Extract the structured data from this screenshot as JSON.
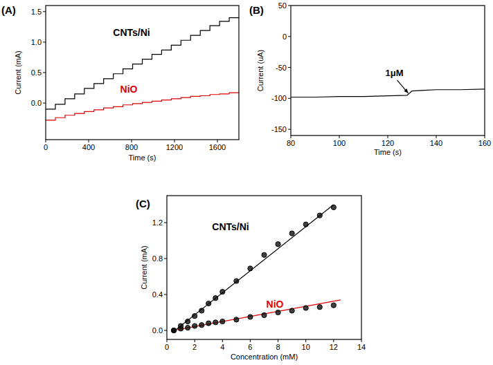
{
  "chart_data": [
    {
      "type": "line",
      "title": "(A)",
      "x_label": "Time (s)",
      "y_label": "Current (mA)",
      "xlim": [
        0,
        1800
      ],
      "ylim": [
        -0.6,
        1.6
      ],
      "xticks": [
        0,
        400,
        800,
        1200,
        1600
      ],
      "yticks": [
        {
          "value": 0,
          "label": "0.0"
        },
        0.5,
        {
          "value": 1,
          "label": "1.0"
        },
        1.5
      ],
      "series": [
        {
          "name": "CNTs/Ni",
          "color": "#000000",
          "x": [
            0,
            90,
            90,
            180,
            180,
            270,
            270,
            360,
            360,
            450,
            450,
            540,
            540,
            630,
            630,
            720,
            720,
            810,
            810,
            900,
            900,
            990,
            990,
            1080,
            1080,
            1170,
            1170,
            1260,
            1260,
            1350,
            1350,
            1440,
            1440,
            1530,
            1530,
            1620,
            1620,
            1710,
            1710,
            1800
          ],
          "values": [
            -0.1,
            -0.1,
            -0.02,
            -0.02,
            0.07,
            0.07,
            0.15,
            0.15,
            0.24,
            0.24,
            0.32,
            0.32,
            0.4,
            0.4,
            0.48,
            0.48,
            0.56,
            0.56,
            0.64,
            0.64,
            0.72,
            0.72,
            0.8,
            0.8,
            0.87,
            0.87,
            0.95,
            0.95,
            1.03,
            1.03,
            1.11,
            1.11,
            1.19,
            1.19,
            1.27,
            1.27,
            1.34,
            1.34,
            1.4,
            1.4
          ]
        },
        {
          "name": "NiO",
          "color": "#e00000",
          "x": [
            0,
            90,
            90,
            180,
            180,
            270,
            270,
            360,
            360,
            450,
            450,
            540,
            540,
            630,
            630,
            720,
            720,
            810,
            810,
            900,
            900,
            990,
            990,
            1080,
            1080,
            1170,
            1170,
            1260,
            1260,
            1350,
            1350,
            1440,
            1440,
            1530,
            1530,
            1620,
            1620,
            1710,
            1710,
            1800
          ],
          "values": [
            -0.28,
            -0.28,
            -0.24,
            -0.24,
            -0.2,
            -0.2,
            -0.17,
            -0.17,
            -0.14,
            -0.14,
            -0.11,
            -0.11,
            -0.08,
            -0.08,
            -0.06,
            -0.06,
            -0.03,
            -0.03,
            -0.01,
            -0.01,
            0.01,
            0.01,
            0.03,
            0.03,
            0.05,
            0.05,
            0.07,
            0.07,
            0.09,
            0.09,
            0.11,
            0.11,
            0.12,
            0.12,
            0.14,
            0.14,
            0.15,
            0.15,
            0.17,
            0.17
          ]
        }
      ]
    },
    {
      "type": "line",
      "title": "(B)",
      "x_label": "Time (s)",
      "y_label": "Current (uA)",
      "xlim": [
        80,
        160
      ],
      "ylim": [
        -160,
        50
      ],
      "xticks": [
        80,
        100,
        120,
        140,
        160
      ],
      "yticks": [
        -150,
        -100,
        -50,
        0,
        50
      ],
      "series": [
        {
          "color": "#000000",
          "x": [
            80,
            90,
            100,
            110,
            120,
            128,
            130,
            135,
            140,
            150,
            160
          ],
          "values": [
            -98,
            -98,
            -97,
            -97,
            -96,
            -95,
            -88,
            -87,
            -86,
            -86,
            -85
          ]
        }
      ],
      "annotations": [
        {
          "text": "1μM",
          "x": 129,
          "y": -95
        }
      ]
    },
    {
      "type": "scatter",
      "title": "(C)",
      "x_label": "Concentration (mM)",
      "y_label": "Current (mA)",
      "xlim": [
        0,
        14
      ],
      "ylim": [
        -0.1,
        1.5
      ],
      "xticks": [
        0,
        2,
        4,
        6,
        8,
        10,
        12,
        14
      ],
      "yticks": [
        {
          "value": 0,
          "label": "0.0"
        },
        0.4,
        0.8,
        1.2
      ],
      "series": [
        {
          "type": "scatter",
          "color": "#000000",
          "marker": "circle",
          "x": [
            0.5,
            1,
            1.5,
            2,
            2.5,
            3,
            3.5,
            4,
            5,
            6,
            7,
            8,
            9,
            10,
            11,
            12
          ],
          "values": [
            0.0,
            0.05,
            0.1,
            0.16,
            0.22,
            0.3,
            0.36,
            0.43,
            0.55,
            0.69,
            0.84,
            0.96,
            1.08,
            1.18,
            1.28,
            1.37
          ]
        },
        {
          "type": "scatter",
          "color": "#000000",
          "marker": "circle",
          "x": [
            0.5,
            1,
            1.5,
            2,
            2.5,
            3,
            3.5,
            4,
            5,
            6,
            7,
            8,
            9,
            10,
            11,
            12
          ],
          "values": [
            0.0,
            0.02,
            0.03,
            0.05,
            0.06,
            0.08,
            0.09,
            0.1,
            0.12,
            0.15,
            0.17,
            0.2,
            0.22,
            0.25,
            0.26,
            0.28
          ]
        },
        {
          "name": "CNTs/Ni",
          "type": "line",
          "color": "#000000",
          "x": [
            0.5,
            12
          ],
          "values": [
            -0.01,
            1.4
          ]
        },
        {
          "name": "NiO",
          "type": "line",
          "color": "#e00000",
          "x": [
            0.5,
            12.5
          ],
          "values": [
            0.0,
            0.34
          ]
        }
      ]
    }
  ]
}
